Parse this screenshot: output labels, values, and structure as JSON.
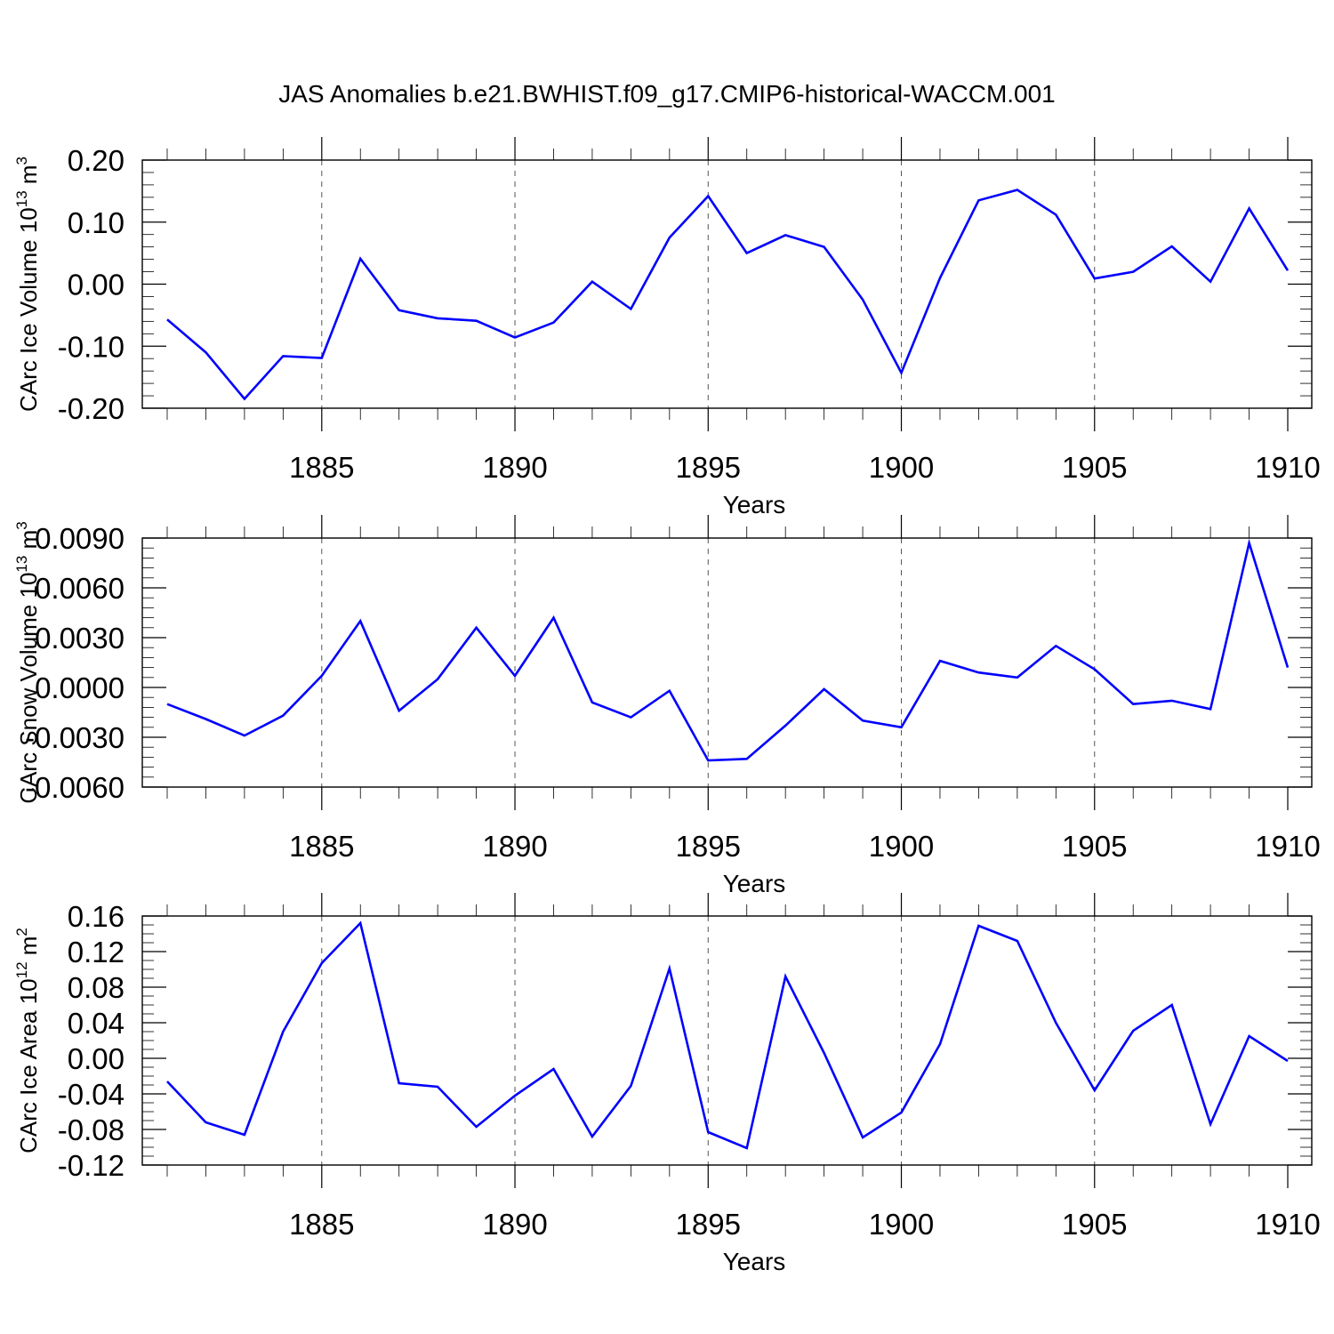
{
  "figure_title": "JAS Anomalies b.e21.BWHIST.f09_g17.CMIP6-historical-WACCM.001",
  "colors": {
    "series": "#0000ff",
    "axes": "#000000",
    "grid": "#555555"
  },
  "chart_data": [
    {
      "type": "line",
      "title": "JAS Anomalies b.e21.BWHIST.f09_g17.CMIP6-historical-WACCM.001",
      "xlabel": "Years",
      "ylabel": {
        "main": "CArc Ice Volume 10",
        "exp": "13",
        "unit": " m",
        "unit_exp": "3"
      },
      "xlim": [
        1881,
        1910
      ],
      "ylim": [
        -0.2,
        0.2
      ],
      "xticks": [
        1885,
        1890,
        1895,
        1900,
        1905,
        1910
      ],
      "xtick_labels": [
        "1885",
        "1890",
        "1895",
        "1900",
        "1905",
        "1910"
      ],
      "yticks": [
        0.2,
        0.1,
        0.0,
        -0.1,
        -0.2
      ],
      "ytick_labels": [
        "0.20",
        "0.10",
        "0.00",
        "-0.10",
        "-0.20"
      ],
      "grid": "vertical dashed at major x ticks",
      "x": [
        1881,
        1882,
        1883,
        1884,
        1885,
        1886,
        1887,
        1888,
        1889,
        1890,
        1891,
        1892,
        1893,
        1894,
        1895,
        1896,
        1897,
        1898,
        1899,
        1900,
        1901,
        1902,
        1903,
        1904,
        1905,
        1906,
        1907,
        1908,
        1909,
        1910
      ],
      "series": [
        {
          "name": "Ice Volume",
          "values": [
            -0.057,
            -0.11,
            -0.185,
            -0.116,
            -0.119,
            0.041,
            -0.042,
            -0.055,
            -0.059,
            -0.086,
            -0.062,
            0.004,
            -0.04,
            0.075,
            0.142,
            0.05,
            0.079,
            0.06,
            -0.025,
            -0.143,
            0.01,
            0.135,
            0.152,
            0.112,
            0.009,
            0.02,
            0.061,
            0.004,
            0.122,
            0.022
          ]
        }
      ]
    },
    {
      "type": "line",
      "xlabel": "Years",
      "ylabel": {
        "main": "CArc Snow Volume 10",
        "exp": "13",
        "unit": " m",
        "unit_exp": "3"
      },
      "xlim": [
        1881,
        1910
      ],
      "ylim": [
        -0.006,
        0.009
      ],
      "xticks": [
        1885,
        1890,
        1895,
        1900,
        1905,
        1910
      ],
      "xtick_labels": [
        "1885",
        "1890",
        "1895",
        "1900",
        "1905",
        "1910"
      ],
      "yticks": [
        0.009,
        0.006,
        0.003,
        0.0,
        -0.003,
        -0.006
      ],
      "ytick_labels": [
        "0.0090",
        "0.0060",
        "0.0030",
        "0.0000",
        "-0.0030",
        "-0.0060"
      ],
      "grid": "vertical dashed at major x ticks",
      "x": [
        1881,
        1882,
        1883,
        1884,
        1885,
        1886,
        1887,
        1888,
        1889,
        1890,
        1891,
        1892,
        1893,
        1894,
        1895,
        1896,
        1897,
        1898,
        1899,
        1900,
        1901,
        1902,
        1903,
        1904,
        1905,
        1906,
        1907,
        1908,
        1909,
        1910
      ],
      "series": [
        {
          "name": "Snow Volume",
          "values": [
            -0.001,
            -0.0019,
            -0.0029,
            -0.0017,
            0.0007,
            0.004,
            -0.0014,
            0.0005,
            0.0036,
            0.0007,
            0.0042,
            -0.0009,
            -0.0018,
            -0.0002,
            -0.0044,
            -0.0043,
            -0.0023,
            -0.0001,
            -0.002,
            -0.0024,
            0.0016,
            0.0009,
            0.0006,
            0.0025,
            0.0011,
            -0.001,
            -0.0008,
            -0.0013,
            0.0087,
            0.0012
          ]
        }
      ]
    },
    {
      "type": "line",
      "xlabel": "Years",
      "ylabel": {
        "main": "CArc Ice Area 10",
        "exp": "12",
        "unit": " m",
        "unit_exp": "2"
      },
      "xlim": [
        1881,
        1910
      ],
      "ylim": [
        -0.12,
        0.16
      ],
      "xticks": [
        1885,
        1890,
        1895,
        1900,
        1905,
        1910
      ],
      "xtick_labels": [
        "1885",
        "1890",
        "1895",
        "1900",
        "1905",
        "1910"
      ],
      "yticks": [
        0.16,
        0.12,
        0.08,
        0.04,
        0.0,
        -0.04,
        -0.08,
        -0.12
      ],
      "ytick_labels": [
        "0.16",
        "0.12",
        "0.08",
        "0.04",
        "0.00",
        "-0.04",
        "-0.08",
        "-0.12"
      ],
      "grid": "vertical dashed at major x ticks",
      "x": [
        1881,
        1882,
        1883,
        1884,
        1885,
        1886,
        1887,
        1888,
        1889,
        1890,
        1891,
        1892,
        1893,
        1894,
        1895,
        1896,
        1897,
        1898,
        1899,
        1900,
        1901,
        1902,
        1903,
        1904,
        1905,
        1906,
        1907,
        1908,
        1909,
        1910
      ],
      "series": [
        {
          "name": "Ice Area",
          "values": [
            -0.026,
            -0.072,
            -0.086,
            0.03,
            0.107,
            0.152,
            -0.028,
            -0.032,
            -0.077,
            -0.042,
            -0.012,
            -0.088,
            -0.031,
            0.101,
            -0.083,
            -0.101,
            0.092,
            0.006,
            -0.089,
            -0.061,
            0.016,
            0.149,
            0.132,
            0.04,
            -0.036,
            0.031,
            0.06,
            -0.074,
            0.025,
            -0.003
          ]
        }
      ]
    }
  ]
}
